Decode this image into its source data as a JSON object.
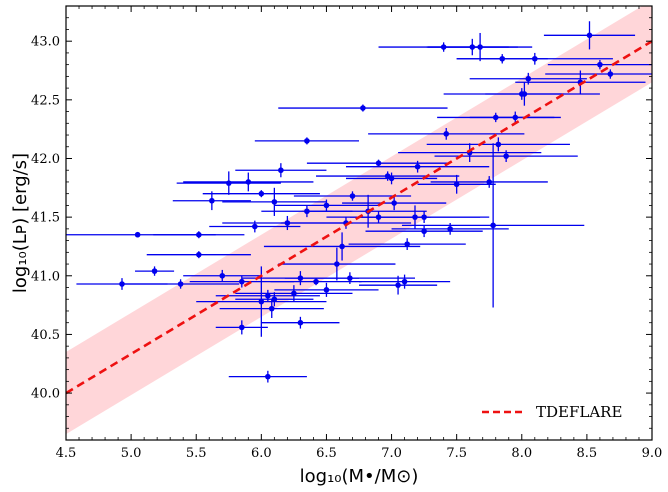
{
  "chart_data": {
    "type": "scatter",
    "title": "",
    "xlabel": "log₁₀(M•/M⊙)",
    "ylabel": "log₁₀(Lᴘ) [erg/s]",
    "xlim": [
      4.5,
      9.0
    ],
    "ylim": [
      39.6,
      43.3
    ],
    "xticks": [
      "4.5",
      "5.0",
      "5.5",
      "6.0",
      "6.5",
      "7.0",
      "7.5",
      "8.0",
      "8.5",
      "9.0"
    ],
    "yticks": [
      "40.0",
      "40.5",
      "41.0",
      "41.5",
      "42.0",
      "42.5",
      "43.0"
    ],
    "legend": {
      "location": "lower-right",
      "entries": [
        "TDEFLARE"
      ]
    },
    "colors": {
      "points": "#0000ee",
      "fit_line": "#ee1111",
      "band": "#ffd6d9"
    },
    "fit": {
      "name": "TDEFLARE",
      "x": [
        4.5,
        9.0
      ],
      "y": [
        40.0,
        43.0
      ],
      "band_halfwidth": 0.35
    },
    "series": [
      {
        "name": "data",
        "x": [
          4.93,
          5.05,
          5.18,
          5.38,
          5.52,
          5.52,
          5.62,
          5.75,
          5.85,
          5.9,
          5.95,
          6.0,
          6.05,
          6.1,
          6.15,
          6.2,
          6.25,
          6.3,
          6.35,
          6.42,
          6.5,
          6.58,
          6.62,
          6.7,
          6.78,
          6.82,
          6.9,
          6.97,
          7.02,
          7.05,
          7.1,
          7.12,
          7.18,
          7.25,
          7.42,
          7.5,
          7.6,
          7.68,
          7.78,
          7.82,
          7.85,
          7.88,
          8.0,
          8.02,
          8.05,
          8.1,
          8.45,
          8.52,
          8.6,
          8.68,
          7.4,
          7.62,
          7.8,
          7.2,
          6.68,
          6.05,
          6.3,
          6.08,
          5.85,
          5.7,
          6.0,
          6.1,
          6.35,
          6.5,
          6.65,
          6.9,
          7.0,
          7.25,
          7.45,
          7.75,
          7.95
        ],
        "y": [
          40.93,
          41.35,
          41.04,
          40.93,
          41.18,
          41.35,
          41.64,
          41.79,
          40.56,
          41.8,
          41.42,
          41.7,
          40.83,
          40.8,
          41.9,
          41.45,
          40.85,
          40.6,
          42.15,
          40.95,
          40.88,
          41.1,
          41.25,
          41.68,
          42.43,
          41.55,
          41.96,
          41.85,
          41.62,
          40.92,
          40.95,
          41.27,
          41.5,
          41.38,
          42.21,
          41.78,
          42.05,
          42.95,
          41.43,
          42.12,
          42.85,
          42.02,
          42.55,
          42.55,
          42.68,
          42.85,
          42.65,
          43.05,
          42.8,
          42.72,
          42.95,
          42.95,
          42.35,
          41.93,
          40.98,
          40.14,
          40.98,
          40.72,
          40.95,
          41.0,
          40.78,
          41.63,
          41.55,
          41.6,
          41.45,
          41.5,
          41.83,
          41.5,
          41.4,
          41.8,
          42.35
        ],
        "xerr": [
          0.35,
          0.6,
          0.15,
          0.45,
          0.4,
          0.35,
          0.3,
          0.4,
          0.2,
          0.5,
          0.35,
          0.45,
          0.4,
          0.3,
          0.35,
          0.5,
          0.45,
          0.3,
          0.4,
          0.35,
          0.4,
          0.45,
          0.6,
          0.45,
          0.65,
          0.45,
          0.55,
          0.55,
          0.4,
          0.3,
          0.35,
          0.45,
          0.5,
          0.45,
          0.6,
          0.3,
          0.55,
          0.4,
          0.7,
          0.55,
          0.35,
          0.55,
          0.6,
          0.3,
          0.45,
          0.6,
          0.5,
          0.35,
          0.4,
          0.5,
          0.5,
          0.35,
          0.45,
          0.55,
          0.5,
          0.3,
          0.45,
          0.4,
          0.4,
          0.3,
          0.5,
          0.4,
          0.35,
          0.4,
          0.5,
          0.4,
          0.35,
          0.5,
          0.45,
          0.45,
          0.35
        ],
        "yerr": [
          0.05,
          0.02,
          0.04,
          0.04,
          0.03,
          0.03,
          0.08,
          0.1,
          0.06,
          0.08,
          0.05,
          0.03,
          0.05,
          0.06,
          0.06,
          0.06,
          0.07,
          0.05,
          0.03,
          0.03,
          0.06,
          0.14,
          0.12,
          0.04,
          0.03,
          0.14,
          0.03,
          0.04,
          0.06,
          0.08,
          0.06,
          0.05,
          0.1,
          0.05,
          0.05,
          0.08,
          0.08,
          0.12,
          0.7,
          0.06,
          0.04,
          0.05,
          0.05,
          0.1,
          0.05,
          0.05,
          0.1,
          0.12,
          0.04,
          0.04,
          0.04,
          0.07,
          0.04,
          0.05,
          0.05,
          0.05,
          0.06,
          0.08,
          0.05,
          0.05,
          0.3,
          0.12,
          0.05,
          0.05,
          0.05,
          0.05,
          0.05,
          0.05,
          0.05,
          0.05,
          0.05
        ]
      }
    ]
  }
}
